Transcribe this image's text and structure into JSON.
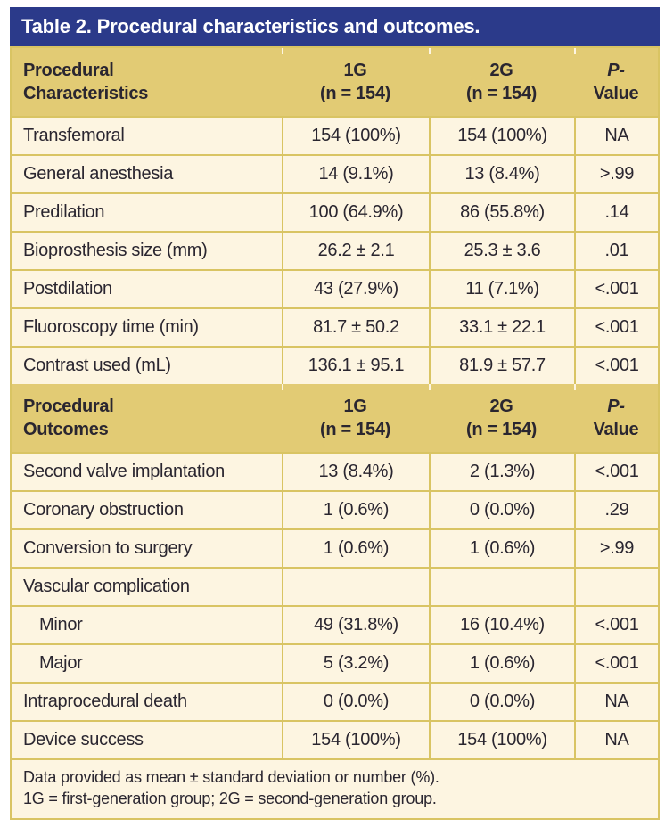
{
  "colors": {
    "navy": "#2b3a8a",
    "gold_header": "#e2cb74",
    "cream": "#fdf5e1",
    "gold_border": "#d9c463",
    "ink": "#2a2630",
    "title_text": "#ffffff"
  },
  "table": {
    "title": "Table 2. Procedural characteristics and outcomes.",
    "sections": [
      {
        "header": {
          "col1": [
            "Procedural",
            "Characteristics"
          ],
          "col2": [
            "1G",
            "(n = 154)"
          ],
          "col3": [
            "2G",
            "(n = 154)"
          ],
          "col4": [
            "P-",
            "Value"
          ]
        },
        "rows": [
          {
            "label": "Transfemoral",
            "g1": "154 (100%)",
            "g2": "154 (100%)",
            "p": "NA"
          },
          {
            "label": "General anesthesia",
            "g1": "14 (9.1%)",
            "g2": "13 (8.4%)",
            "p": ">.99"
          },
          {
            "label": "Predilation",
            "g1": "100 (64.9%)",
            "g2": "86 (55.8%)",
            "p": ".14"
          },
          {
            "label": "Bioprosthesis size (mm)",
            "g1": "26.2 ± 2.1",
            "g2": "25.3 ± 3.6",
            "p": ".01"
          },
          {
            "label": "Postdilation",
            "g1": "43 (27.9%)",
            "g2": "11 (7.1%)",
            "p": "<.001"
          },
          {
            "label": "Fluoroscopy time (min)",
            "g1": "81.7 ± 50.2",
            "g2": "33.1 ± 22.1",
            "p": "<.001"
          },
          {
            "label": "Contrast used (mL)",
            "g1": "136.1 ± 95.1",
            "g2": "81.9 ± 57.7",
            "p": "<.001"
          }
        ]
      },
      {
        "header": {
          "col1": [
            "Procedural",
            "Outcomes"
          ],
          "col2": [
            "1G",
            "(n = 154)"
          ],
          "col3": [
            "2G",
            "(n = 154)"
          ],
          "col4": [
            "P-",
            "Value"
          ]
        },
        "rows": [
          {
            "label": "Second valve implantation",
            "g1": "13 (8.4%)",
            "g2": "2 (1.3%)",
            "p": "<.001"
          },
          {
            "label": "Coronary obstruction",
            "g1": "1 (0.6%)",
            "g2": "0 (0.0%)",
            "p": ".29"
          },
          {
            "label": "Conversion to surgery",
            "g1": "1 (0.6%)",
            "g2": "1 (0.6%)",
            "p": ">.99"
          },
          {
            "label": "Vascular complication",
            "g1": "",
            "g2": "",
            "p": ""
          },
          {
            "label": "Minor",
            "g1": "49 (31.8%)",
            "g2": "16 (10.4%)",
            "p": "<.001"
          },
          {
            "label": "Major",
            "g1": "5 (3.2%)",
            "g2": "1 (0.6%)",
            "p": "<.001"
          },
          {
            "label": "Intraprocedural death",
            "g1": "0 (0.0%)",
            "g2": "0 (0.0%)",
            "p": "NA"
          },
          {
            "label": "Device success",
            "g1": "154 (100%)",
            "g2": "154 (100%)",
            "p": "NA"
          }
        ]
      }
    ],
    "footnotes": [
      "Data provided as mean ± standard deviation or number (%).",
      "1G = first-generation group; 2G = second-generation group."
    ]
  }
}
